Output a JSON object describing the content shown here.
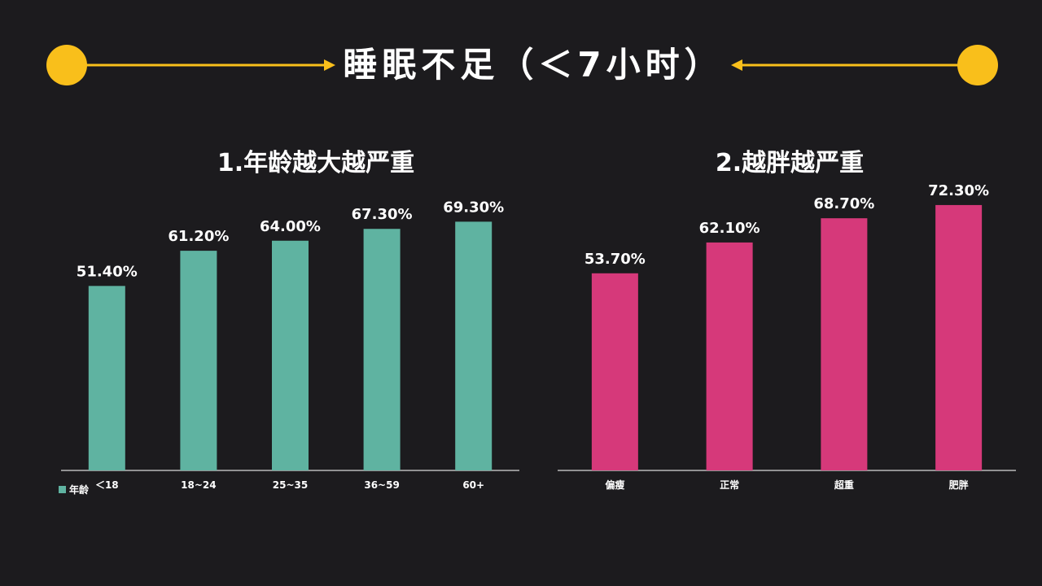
{
  "header": {
    "title": "睡眠不足（＜7小时）",
    "accent_color": "#f9bf1b"
  },
  "chart_data": [
    {
      "type": "bar",
      "title": "1.年龄越大越严重",
      "categories": [
        "＜18",
        "18~24",
        "25~35",
        "36~59",
        "60+"
      ],
      "series": [
        {
          "name": "年龄",
          "values": [
            51.4,
            61.2,
            64.0,
            67.3,
            69.3
          ],
          "color": "#5fb3a1"
        }
      ],
      "data_labels": [
        "51.40%",
        "61.20%",
        "64.00%",
        "67.30%",
        "69.30%"
      ],
      "ylim": [
        0,
        100
      ],
      "grid": false,
      "legend": "bottom-left",
      "xlabel": "",
      "ylabel": ""
    },
    {
      "type": "bar",
      "title": "2.越胖越严重",
      "categories": [
        "偏瘦",
        "正常",
        "超重",
        "肥胖"
      ],
      "series": [
        {
          "values": [
            53.7,
            62.1,
            68.7,
            72.3
          ],
          "color": "#d6397a"
        }
      ],
      "data_labels": [
        "53.70%",
        "62.10%",
        "68.70%",
        "72.30%"
      ],
      "ylim": [
        0,
        100
      ],
      "grid": false,
      "legend": "none",
      "xlabel": "",
      "ylabel": ""
    }
  ]
}
